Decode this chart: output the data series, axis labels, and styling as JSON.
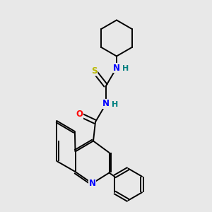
{
  "background_color": "#e8e8e8",
  "bond_color": "#000000",
  "atom_colors": {
    "N": "#0000ff",
    "O": "#ff0000",
    "S": "#b8b800",
    "H": "#008080",
    "C": "#000000"
  },
  "figsize": [
    3.0,
    3.0
  ],
  "dpi": 100,
  "lw": 1.4,
  "fs": 8.5,
  "xlim": [
    0,
    10
  ],
  "ylim": [
    0,
    10
  ]
}
